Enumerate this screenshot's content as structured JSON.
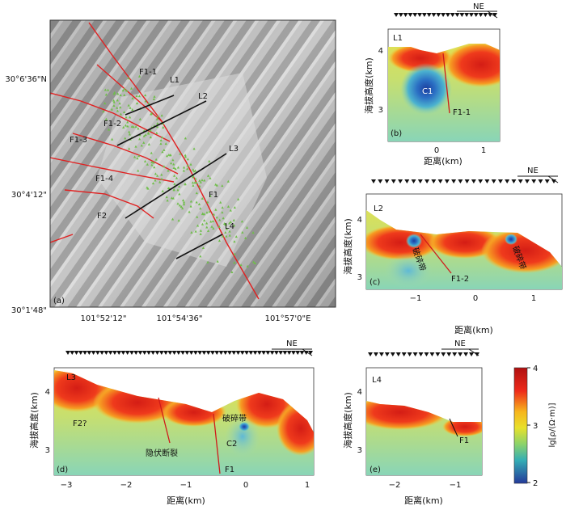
{
  "figure": {
    "colorbar": {
      "label": "lg[ρ/(Ω·m)]",
      "ticks": [
        "4",
        "3",
        "2"
      ]
    },
    "direction_label": "NE",
    "ylabel": "海拔高度(km)",
    "xlabel": "距离(km)"
  },
  "chart_data": [
    {
      "panel": "(a)",
      "type": "map",
      "lat_ticks": [
        "30°6'36\"N",
        "30°4'12\"",
        "30°1'48\""
      ],
      "lon_ticks": [
        "101°52'12\"",
        "101°54'36\"",
        "101°57'0\"E"
      ],
      "fault_labels": [
        "F1-1",
        "F1-2",
        "F1-3",
        "F1-4",
        "F2",
        "F1"
      ],
      "profile_labels": [
        "L1",
        "L2",
        "L3",
        "L4"
      ]
    },
    {
      "panel": "(b)",
      "type": "heatmap",
      "profile": "L1",
      "xticks": [
        "0",
        "1"
      ],
      "yticks": [
        "4",
        "3"
      ],
      "annotations": [
        "C1",
        "F1-1"
      ],
      "stations": 22
    },
    {
      "panel": "(c)",
      "type": "heatmap",
      "profile": "L2",
      "xticks": [
        "−1",
        "0",
        "1"
      ],
      "yticks": [
        "4",
        "3"
      ],
      "annotations": [
        "破碎带",
        "F1-2",
        "破碎带"
      ],
      "stations": 28
    },
    {
      "panel": "(d)",
      "type": "heatmap",
      "profile": "L3",
      "xticks": [
        "−3",
        "−2",
        "−1",
        "0",
        "1"
      ],
      "yticks": [
        "4",
        "3"
      ],
      "annotations": [
        "F2?",
        "隐伏断裂",
        "破碎带",
        "C2",
        "F1"
      ],
      "stations": 58
    },
    {
      "panel": "(e)",
      "type": "heatmap",
      "profile": "L4",
      "xticks": [
        "−2",
        "−1"
      ],
      "yticks": [
        "4",
        "3"
      ],
      "annotations": [
        "F1"
      ],
      "stations": 20
    }
  ]
}
